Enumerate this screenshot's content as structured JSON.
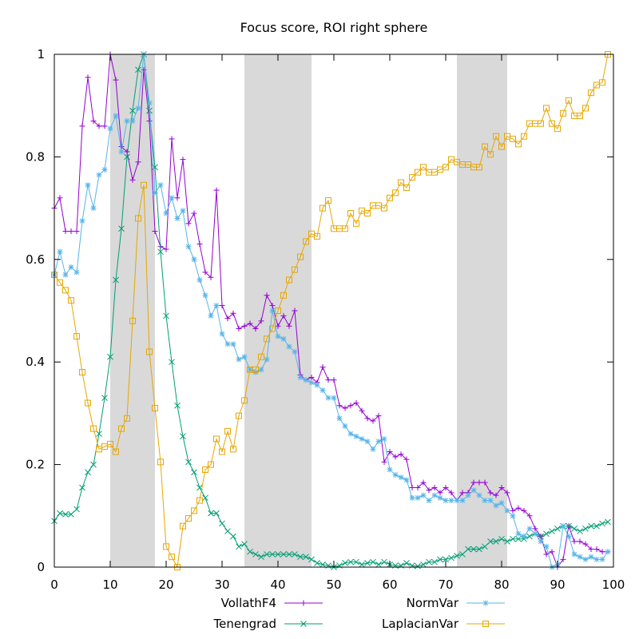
{
  "chart_data": {
    "type": "line",
    "title": "Focus score, ROI right sphere",
    "xlabel": "",
    "ylabel": "",
    "xlim": [
      0,
      100
    ],
    "ylim": [
      0,
      1
    ],
    "x_ticks": [
      0,
      10,
      20,
      30,
      40,
      50,
      60,
      70,
      80,
      90,
      100
    ],
    "x_tick_labels": [
      "0",
      "10",
      "20",
      "30",
      "40",
      "50",
      "60",
      "70",
      "80",
      "90",
      "100"
    ],
    "y_ticks": [
      0,
      0.2,
      0.4,
      0.6,
      0.8,
      1
    ],
    "y_tick_labels": [
      "0",
      "0.2",
      "0.4",
      "0.6",
      "0.8",
      "1"
    ],
    "grid": false,
    "legend_position": "bottom, below plot, two columns",
    "shaded_bands": [
      [
        10,
        18
      ],
      [
        34,
        46
      ],
      [
        72,
        81
      ]
    ],
    "band_color": "#d9d9d9",
    "series": [
      {
        "name": "VollathF4",
        "color": "#9400d3",
        "marker": "plus",
        "x": [
          0,
          1,
          2,
          3,
          4,
          5,
          6,
          7,
          8,
          9,
          10,
          11,
          12,
          13,
          14,
          15,
          16,
          17,
          18,
          19,
          20,
          21,
          22,
          23,
          24,
          25,
          26,
          27,
          28,
          29,
          30,
          31,
          32,
          33,
          34,
          35,
          36,
          37,
          38,
          39,
          40,
          41,
          42,
          43,
          44,
          45,
          46,
          47,
          48,
          49,
          50,
          51,
          52,
          53,
          54,
          55,
          56,
          57,
          58,
          59,
          60,
          61,
          62,
          63,
          64,
          65,
          66,
          67,
          68,
          69,
          70,
          71,
          72,
          73,
          74,
          75,
          76,
          77,
          78,
          79,
          80,
          81,
          82,
          83,
          84,
          85,
          86,
          87,
          88,
          89,
          90,
          91,
          92,
          93,
          94,
          95,
          96,
          97,
          98,
          99
        ],
        "y": [
          0.7,
          0.72,
          0.655,
          0.655,
          0.655,
          0.86,
          0.955,
          0.87,
          0.86,
          0.86,
          1.0,
          0.95,
          0.82,
          0.81,
          0.755,
          0.79,
          0.97,
          0.87,
          0.655,
          0.625,
          0.62,
          0.835,
          0.72,
          0.795,
          0.67,
          0.69,
          0.63,
          0.575,
          0.565,
          0.735,
          0.51,
          0.485,
          0.495,
          0.465,
          0.47,
          0.475,
          0.465,
          0.48,
          0.53,
          0.51,
          0.47,
          0.49,
          0.47,
          0.5,
          0.375,
          0.365,
          0.37,
          0.36,
          0.39,
          0.365,
          0.365,
          0.315,
          0.31,
          0.315,
          0.32,
          0.305,
          0.29,
          0.285,
          0.295,
          0.205,
          0.225,
          0.215,
          0.22,
          0.21,
          0.155,
          0.155,
          0.165,
          0.15,
          0.155,
          0.145,
          0.155,
          0.145,
          0.13,
          0.145,
          0.145,
          0.165,
          0.165,
          0.165,
          0.145,
          0.14,
          0.155,
          0.145,
          0.11,
          0.115,
          0.11,
          0.1,
          0.075,
          0.06,
          0.025,
          0.03,
          0.0,
          0.015,
          0.08,
          0.05,
          0.05,
          0.045,
          0.035,
          0.035,
          0.03,
          0.03
        ]
      },
      {
        "name": "Tenengrad",
        "color": "#009e73",
        "marker": "cross",
        "x": [
          0,
          1,
          2,
          3,
          4,
          5,
          6,
          7,
          8,
          9,
          10,
          11,
          12,
          13,
          14,
          15,
          16,
          17,
          18,
          19,
          20,
          21,
          22,
          23,
          24,
          25,
          26,
          27,
          28,
          29,
          30,
          31,
          32,
          33,
          34,
          35,
          36,
          37,
          38,
          39,
          40,
          41,
          42,
          43,
          44,
          45,
          46,
          47,
          48,
          49,
          50,
          51,
          52,
          53,
          54,
          55,
          56,
          57,
          58,
          59,
          60,
          61,
          62,
          63,
          64,
          65,
          66,
          67,
          68,
          69,
          70,
          71,
          72,
          73,
          74,
          75,
          76,
          77,
          78,
          79,
          80,
          81,
          82,
          83,
          84,
          85,
          86,
          87,
          88,
          89,
          90,
          91,
          92,
          93,
          94,
          95,
          96,
          97,
          98,
          99
        ],
        "y": [
          0.09,
          0.105,
          0.103,
          0.103,
          0.113,
          0.155,
          0.185,
          0.2,
          0.26,
          0.33,
          0.41,
          0.56,
          0.66,
          0.8,
          0.89,
          0.97,
          1.0,
          0.89,
          0.78,
          0.615,
          0.49,
          0.4,
          0.315,
          0.255,
          0.205,
          0.185,
          0.155,
          0.135,
          0.105,
          0.105,
          0.085,
          0.07,
          0.06,
          0.04,
          0.045,
          0.03,
          0.025,
          0.02,
          0.025,
          0.025,
          0.025,
          0.025,
          0.025,
          0.025,
          0.02,
          0.02,
          0.015,
          0.008,
          0.005,
          0.003,
          0.0,
          0.003,
          0.008,
          0.01,
          0.01,
          0.005,
          0.008,
          0.01,
          0.005,
          0.01,
          0.005,
          0.003,
          0.003,
          0.008,
          0.003,
          0.002,
          0.005,
          0.01,
          0.01,
          0.015,
          0.015,
          0.018,
          0.022,
          0.025,
          0.035,
          0.035,
          0.035,
          0.04,
          0.05,
          0.05,
          0.055,
          0.05,
          0.055,
          0.055,
          0.055,
          0.06,
          0.065,
          0.06,
          0.065,
          0.07,
          0.075,
          0.08,
          0.08,
          0.075,
          0.07,
          0.075,
          0.08,
          0.08,
          0.085,
          0.088
        ]
      },
      {
        "name": "NormVar",
        "color": "#56b4e9",
        "marker": "star",
        "x": [
          0,
          1,
          2,
          3,
          4,
          5,
          6,
          7,
          8,
          9,
          10,
          11,
          12,
          13,
          14,
          15,
          16,
          17,
          18,
          19,
          20,
          21,
          22,
          23,
          24,
          25,
          26,
          27,
          28,
          29,
          30,
          31,
          32,
          33,
          34,
          35,
          36,
          37,
          38,
          39,
          40,
          41,
          42,
          43,
          44,
          45,
          46,
          47,
          48,
          49,
          50,
          51,
          52,
          53,
          54,
          55,
          56,
          57,
          58,
          59,
          60,
          61,
          62,
          63,
          64,
          65,
          66,
          67,
          68,
          69,
          70,
          71,
          72,
          73,
          74,
          75,
          76,
          77,
          78,
          79,
          80,
          81,
          82,
          83,
          84,
          85,
          86,
          87,
          88,
          89,
          90,
          91,
          92,
          93,
          94,
          95,
          96,
          97,
          98,
          99
        ],
        "y": [
          0.57,
          0.615,
          0.57,
          0.585,
          0.575,
          0.675,
          0.745,
          0.7,
          0.765,
          0.775,
          0.855,
          0.88,
          0.81,
          0.87,
          0.87,
          0.895,
          1.0,
          0.905,
          0.73,
          0.745,
          0.69,
          0.72,
          0.68,
          0.695,
          0.625,
          0.6,
          0.56,
          0.53,
          0.49,
          0.51,
          0.455,
          0.435,
          0.435,
          0.405,
          0.41,
          0.385,
          0.38,
          0.385,
          0.405,
          0.5,
          0.45,
          0.445,
          0.43,
          0.42,
          0.37,
          0.365,
          0.36,
          0.355,
          0.345,
          0.33,
          0.33,
          0.29,
          0.275,
          0.26,
          0.255,
          0.25,
          0.245,
          0.23,
          0.245,
          0.25,
          0.19,
          0.18,
          0.175,
          0.17,
          0.135,
          0.135,
          0.14,
          0.13,
          0.14,
          0.135,
          0.13,
          0.13,
          0.13,
          0.13,
          0.14,
          0.15,
          0.14,
          0.13,
          0.13,
          0.12,
          0.125,
          0.11,
          0.1,
          0.065,
          0.06,
          0.075,
          0.065,
          0.05,
          0.04,
          0.0,
          0.005,
          0.08,
          0.06,
          0.025,
          0.02,
          0.015,
          0.02,
          0.015,
          0.015,
          0.03
        ]
      },
      {
        "name": "LaplacianVar",
        "color": "#e6a700",
        "marker": "square",
        "x": [
          0,
          1,
          2,
          3,
          4,
          5,
          6,
          7,
          8,
          9,
          10,
          11,
          12,
          13,
          14,
          15,
          16,
          17,
          18,
          19,
          20,
          21,
          22,
          23,
          24,
          25,
          26,
          27,
          28,
          29,
          30,
          31,
          32,
          33,
          34,
          35,
          36,
          37,
          38,
          39,
          40,
          41,
          42,
          43,
          44,
          45,
          46,
          47,
          48,
          49,
          50,
          51,
          52,
          53,
          54,
          55,
          56,
          57,
          58,
          59,
          60,
          61,
          62,
          63,
          64,
          65,
          66,
          67,
          68,
          69,
          70,
          71,
          72,
          73,
          74,
          75,
          76,
          77,
          78,
          79,
          80,
          81,
          82,
          83,
          84,
          85,
          86,
          87,
          88,
          89,
          90,
          91,
          92,
          93,
          94,
          95,
          96,
          97,
          98,
          99
        ],
        "y": [
          0.57,
          0.555,
          0.54,
          0.52,
          0.45,
          0.38,
          0.32,
          0.27,
          0.23,
          0.235,
          0.24,
          0.225,
          0.27,
          0.29,
          0.48,
          0.68,
          0.745,
          0.42,
          0.31,
          0.205,
          0.04,
          0.02,
          0.0,
          0.08,
          0.095,
          0.11,
          0.13,
          0.19,
          0.2,
          0.25,
          0.225,
          0.265,
          0.23,
          0.295,
          0.325,
          0.385,
          0.385,
          0.41,
          0.445,
          0.465,
          0.5,
          0.53,
          0.56,
          0.58,
          0.605,
          0.635,
          0.65,
          0.645,
          0.7,
          0.715,
          0.66,
          0.66,
          0.66,
          0.69,
          0.67,
          0.695,
          0.69,
          0.705,
          0.705,
          0.7,
          0.72,
          0.73,
          0.75,
          0.74,
          0.76,
          0.77,
          0.78,
          0.77,
          0.77,
          0.775,
          0.78,
          0.795,
          0.79,
          0.785,
          0.785,
          0.78,
          0.78,
          0.82,
          0.805,
          0.84,
          0.82,
          0.84,
          0.835,
          0.825,
          0.84,
          0.865,
          0.865,
          0.865,
          0.895,
          0.865,
          0.855,
          0.885,
          0.91,
          0.88,
          0.88,
          0.895,
          0.925,
          0.94,
          0.945,
          1.0
        ]
      }
    ]
  }
}
